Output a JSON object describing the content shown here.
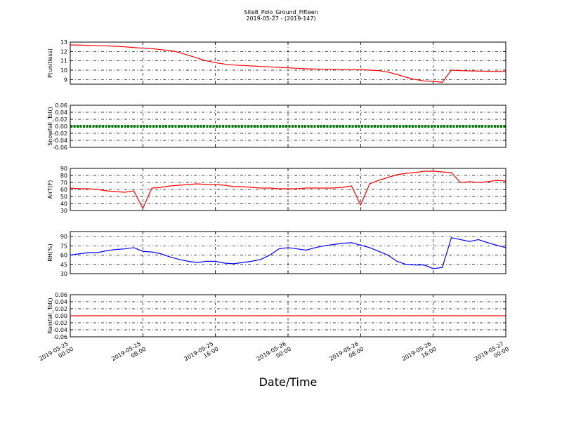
{
  "chart_data": {
    "type": "line",
    "title": "Site8_Polo_Ground_Fifteen",
    "subtitle": "2019-05-27 - (2019-147)",
    "xlabel": "Date/Time",
    "xlim": [
      "2019-05-25 00:00",
      "2019-05-27 00:00"
    ],
    "xticks": [
      "2019-05-25 00:00",
      "2019-05-25 08:00",
      "2019-05-25 16:00",
      "2019-05-26 00:00",
      "2019-05-26 08:00",
      "2019-05-26 16:00",
      "2019-05-27 00:00"
    ],
    "grid": true,
    "x": [
      "2019-05-25 00:00",
      "2019-05-25 01:00",
      "2019-05-25 02:00",
      "2019-05-25 03:00",
      "2019-05-25 04:00",
      "2019-05-25 05:00",
      "2019-05-25 06:00",
      "2019-05-25 07:00",
      "2019-05-25 08:00",
      "2019-05-25 09:00",
      "2019-05-25 10:00",
      "2019-05-25 11:00",
      "2019-05-25 12:00",
      "2019-05-25 13:00",
      "2019-05-25 14:00",
      "2019-05-25 15:00",
      "2019-05-25 16:00",
      "2019-05-25 17:00",
      "2019-05-25 18:00",
      "2019-05-25 19:00",
      "2019-05-25 20:00",
      "2019-05-25 21:00",
      "2019-05-25 22:00",
      "2019-05-25 23:00",
      "2019-05-26 00:00",
      "2019-05-26 01:00",
      "2019-05-26 02:00",
      "2019-05-26 03:00",
      "2019-05-26 04:00",
      "2019-05-26 05:00",
      "2019-05-26 06:00",
      "2019-05-26 07:00",
      "2019-05-26 08:00",
      "2019-05-26 09:00",
      "2019-05-26 10:00",
      "2019-05-26 11:00",
      "2019-05-26 12:00",
      "2019-05-26 13:00",
      "2019-05-26 14:00",
      "2019-05-26 15:00",
      "2019-05-26 16:00",
      "2019-05-26 17:00",
      "2019-05-26 18:00",
      "2019-05-26 19:00",
      "2019-05-26 20:00",
      "2019-05-26 21:00",
      "2019-05-26 22:00",
      "2019-05-26 23:00",
      "2019-05-27 00:00"
    ],
    "panels": [
      {
        "ylabel": "P(unitless)",
        "ylim": [
          8.5,
          13
        ],
        "yticks": [
          9,
          10,
          11,
          12,
          13
        ],
        "color": "#ff0000",
        "style": "solid",
        "values": [
          12.7,
          12.68,
          12.65,
          12.62,
          12.6,
          12.55,
          12.5,
          12.42,
          12.35,
          12.3,
          12.2,
          12.1,
          11.9,
          11.6,
          11.3,
          11.0,
          10.8,
          10.65,
          10.55,
          10.5,
          10.45,
          10.4,
          10.35,
          10.3,
          10.25,
          10.2,
          10.15,
          10.12,
          10.1,
          10.08,
          10.06,
          10.05,
          10.05,
          10.0,
          9.95,
          9.8,
          9.55,
          9.25,
          9.0,
          8.85,
          8.8,
          8.7,
          10.0,
          9.95,
          9.92,
          9.9,
          9.88,
          9.87,
          9.85
        ]
      },
      {
        "ylabel": "Snowfall_Tot()",
        "ylim": [
          -0.06,
          0.06
        ],
        "yticks": [
          -0.06,
          -0.04,
          -0.02,
          {
            "value": 0,
            "label": "0.00"
          },
          0.02,
          0.04,
          0.06
        ],
        "color": "#008000",
        "style": "dotted",
        "values": [
          0,
          0,
          0,
          0,
          0,
          0,
          0,
          0,
          0,
          0,
          0,
          0,
          0,
          0,
          0,
          0,
          0,
          0,
          0,
          0,
          0,
          0,
          0,
          0,
          0,
          0,
          0,
          0,
          0,
          0,
          0,
          0,
          0,
          0,
          0,
          0,
          0,
          0,
          0,
          0,
          0,
          0,
          0,
          0,
          0,
          0,
          0,
          0,
          0
        ]
      },
      {
        "ylabel": "AirT(F)",
        "ylim": [
          30,
          90
        ],
        "yticks": [
          30,
          40,
          50,
          60,
          70,
          80,
          90
        ],
        "color": "#ff0000",
        "style": "solid",
        "values": [
          62,
          61,
          61,
          60,
          58,
          57,
          56,
          58,
          33,
          62,
          63,
          65,
          66,
          67,
          68,
          67,
          67,
          66,
          64,
          64,
          63,
          62,
          62,
          61,
          61,
          61,
          62,
          62,
          62,
          62,
          63,
          65,
          38,
          68,
          73,
          77,
          81,
          83,
          84,
          86,
          86,
          85,
          84,
          70,
          71,
          70,
          71,
          73,
          72
        ]
      },
      {
        "ylabel": "RH(%)",
        "ylim": [
          30,
          98
        ],
        "yticks": [
          30,
          45,
          60,
          75,
          90
        ],
        "color": "#0000ff",
        "style": "solid",
        "values": [
          60,
          62,
          64,
          64,
          67,
          69,
          70,
          72,
          66,
          65,
          62,
          57,
          53,
          50,
          48,
          50,
          50,
          47,
          46,
          48,
          50,
          53,
          60,
          70,
          72,
          70,
          68,
          72,
          75,
          77,
          79,
          80,
          76,
          72,
          66,
          60,
          50,
          45,
          44,
          44,
          38,
          40,
          88,
          85,
          82,
          85,
          80,
          76,
          72
        ]
      },
      {
        "ylabel": "Rainfall_Tot()",
        "ylim": [
          -0.06,
          0.06
        ],
        "yticks": [
          -0.06,
          -0.04,
          -0.02,
          {
            "value": 0,
            "label": "0.00"
          },
          0.02,
          0.04,
          0.06
        ],
        "color": "#ff0000",
        "style": "solid",
        "values": [
          0,
          0,
          0,
          0,
          0,
          0,
          0,
          0,
          0,
          0,
          0,
          0,
          0,
          0,
          0,
          0,
          0,
          0,
          0,
          0,
          0,
          0,
          0,
          0,
          0,
          0,
          0,
          0,
          0,
          0,
          0,
          0,
          0,
          0,
          0,
          0,
          0,
          0,
          0,
          0,
          0,
          0,
          0,
          0,
          0,
          0,
          0,
          0,
          0
        ]
      }
    ]
  }
}
